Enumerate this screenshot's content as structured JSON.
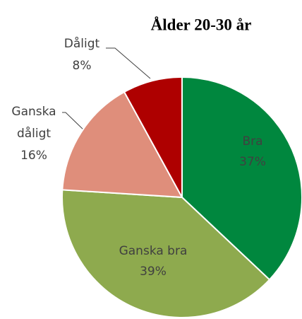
{
  "chart_data": {
    "type": "pie",
    "title": "Ålder 20-30 år",
    "categories": [
      "Bra",
      "Ganska bra",
      "Ganska dåligt",
      "Dåligt"
    ],
    "values": [
      37,
      39,
      16,
      8
    ],
    "value_labels": [
      "37%",
      "39%",
      "16%",
      "8%"
    ],
    "colors": [
      "#00873e",
      "#8eaa4e",
      "#df8e7b",
      "#ae0000"
    ]
  }
}
